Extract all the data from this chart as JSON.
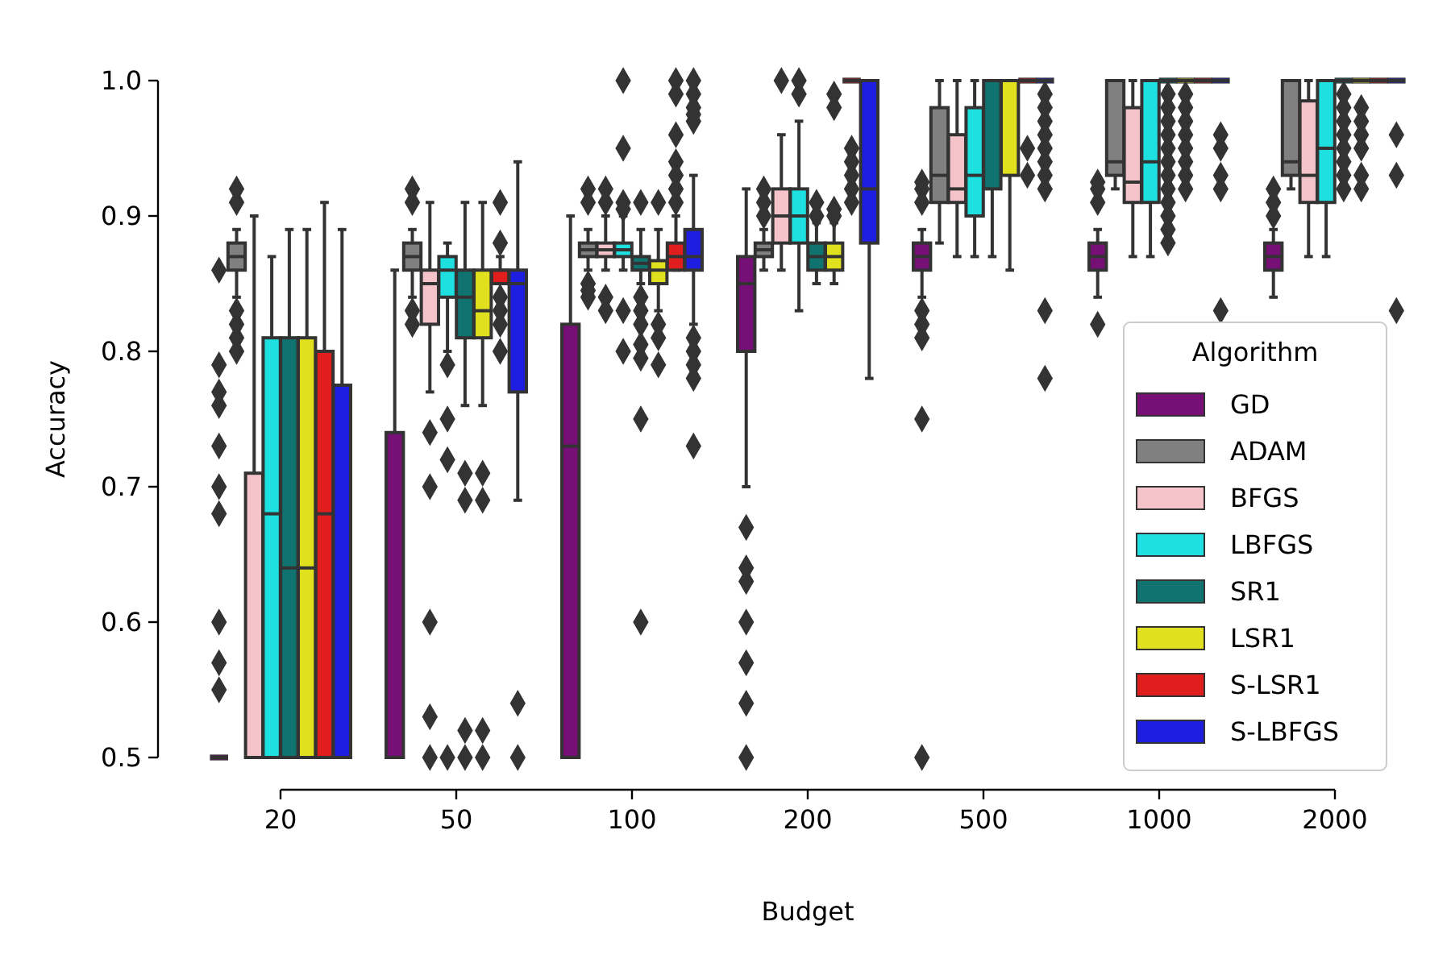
{
  "chart_data": {
    "type": "box",
    "xlabel": "Budget",
    "ylabel": "Accuracy",
    "legend_title": "Algorithm",
    "legend": "right",
    "grid": false,
    "categories": [
      "20",
      "50",
      "100",
      "200",
      "500",
      "1000",
      "2000"
    ],
    "ylim": [
      0.5,
      1.0
    ],
    "yticks": [
      0.5,
      0.6,
      0.7,
      0.8,
      0.9,
      {
        "value": 1.0,
        "label": "1.0"
      }
    ],
    "series": [
      {
        "name": "GD",
        "color": "#760f76",
        "boxes": [
          {
            "low": 0.5,
            "q1": 0.5,
            "median": 0.5,
            "q3": 0.5,
            "high": 0.5,
            "outliers": [
              0.86,
              0.79,
              0.77,
              0.76,
              0.73,
              0.7,
              0.68,
              0.6,
              0.57,
              0.55
            ]
          },
          {
            "low": 0.5,
            "q1": 0.5,
            "median": 0.5,
            "q3": 0.74,
            "high": 0.86
          },
          {
            "low": 0.5,
            "q1": 0.5,
            "median": 0.73,
            "q3": 0.82,
            "high": 0.9
          },
          {
            "low": 0.7,
            "q1": 0.8,
            "median": 0.85,
            "q3": 0.87,
            "high": 0.92,
            "outliers": [
              0.67,
              0.64,
              0.63,
              0.6,
              0.57,
              0.54,
              0.5
            ]
          },
          {
            "low": 0.84,
            "q1": 0.86,
            "median": 0.87,
            "q3": 0.88,
            "high": 0.89,
            "outliers": [
              0.925,
              0.92,
              0.91,
              0.83,
              0.82,
              0.81,
              0.75,
              0.5
            ]
          },
          {
            "low": 0.84,
            "q1": 0.86,
            "median": 0.87,
            "q3": 0.88,
            "high": 0.89,
            "outliers": [
              0.925,
              0.92,
              0.91,
              0.82
            ]
          },
          {
            "low": 0.84,
            "q1": 0.86,
            "median": 0.87,
            "q3": 0.88,
            "high": 0.89,
            "outliers": [
              0.92,
              0.91,
              0.9
            ]
          }
        ]
      },
      {
        "name": "ADAM",
        "color": "#808080",
        "boxes": [
          {
            "low": 0.84,
            "q1": 0.86,
            "median": 0.87,
            "q3": 0.88,
            "high": 0.89,
            "outliers": [
              0.92,
              0.91,
              0.83,
              0.82,
              0.81,
              0.8
            ]
          },
          {
            "low": 0.84,
            "q1": 0.86,
            "median": 0.87,
            "q3": 0.88,
            "high": 0.89,
            "outliers": [
              0.92,
              0.91,
              0.83,
              0.82
            ]
          },
          {
            "low": 0.86,
            "q1": 0.87,
            "median": 0.875,
            "q3": 0.88,
            "high": 0.89,
            "outliers": [
              0.92,
              0.91,
              0.85,
              0.845,
              0.84
            ]
          },
          {
            "low": 0.86,
            "q1": 0.87,
            "median": 0.875,
            "q3": 0.88,
            "high": 0.89,
            "outliers": [
              0.92,
              0.91,
              0.9
            ]
          },
          {
            "low": 0.88,
            "q1": 0.91,
            "median": 0.93,
            "q3": 0.98,
            "high": 1.0
          },
          {
            "low": 0.92,
            "q1": 0.93,
            "median": 0.94,
            "q3": 1.0,
            "high": 1.0
          },
          {
            "low": 0.92,
            "q1": 0.93,
            "median": 0.94,
            "q3": 1.0,
            "high": 1.0
          }
        ]
      },
      {
        "name": "BFGS",
        "color": "#f5c4cb",
        "boxes": [
          {
            "low": 0.5,
            "q1": 0.5,
            "median": 0.5,
            "q3": 0.71,
            "high": 0.9
          },
          {
            "low": 0.77,
            "q1": 0.82,
            "median": 0.85,
            "q3": 0.86,
            "high": 0.91,
            "outliers": [
              0.74,
              0.7,
              0.6,
              0.53,
              0.5
            ]
          },
          {
            "low": 0.86,
            "q1": 0.87,
            "median": 0.875,
            "q3": 0.88,
            "high": 0.9,
            "outliers": [
              0.92,
              0.91,
              0.84,
              0.83
            ]
          },
          {
            "low": 0.86,
            "q1": 0.88,
            "median": 0.9,
            "q3": 0.92,
            "high": 0.96,
            "outliers": [
              1.0
            ]
          },
          {
            "low": 0.87,
            "q1": 0.91,
            "median": 0.92,
            "q3": 0.96,
            "high": 1.0
          },
          {
            "low": 0.87,
            "q1": 0.91,
            "median": 0.925,
            "q3": 0.98,
            "high": 1.0
          },
          {
            "low": 0.87,
            "q1": 0.91,
            "median": 0.93,
            "q3": 0.985,
            "high": 1.0
          }
        ]
      },
      {
        "name": "LBFGS",
        "color": "#1ee0e0",
        "boxes": [
          {
            "low": 0.5,
            "q1": 0.5,
            "median": 0.68,
            "q3": 0.81,
            "high": 0.87
          },
          {
            "low": 0.8,
            "q1": 0.84,
            "median": 0.86,
            "q3": 0.87,
            "high": 0.88,
            "outliers": [
              0.79,
              0.75,
              0.72,
              0.5
            ]
          },
          {
            "low": 0.86,
            "q1": 0.87,
            "median": 0.875,
            "q3": 0.88,
            "high": 0.9,
            "outliers": [
              1.0,
              0.95,
              0.91,
              0.905,
              0.83,
              0.8
            ]
          },
          {
            "low": 0.83,
            "q1": 0.88,
            "median": 0.9,
            "q3": 0.92,
            "high": 0.97,
            "outliers": [
              1.0,
              0.99
            ]
          },
          {
            "low": 0.87,
            "q1": 0.9,
            "median": 0.93,
            "q3": 0.98,
            "high": 1.0
          },
          {
            "low": 0.87,
            "q1": 0.91,
            "median": 0.94,
            "q3": 1.0,
            "high": 1.0
          },
          {
            "low": 0.87,
            "q1": 0.91,
            "median": 0.95,
            "q3": 1.0,
            "high": 1.0
          }
        ]
      },
      {
        "name": "SR1",
        "color": "#107370",
        "boxes": [
          {
            "low": 0.5,
            "q1": 0.5,
            "median": 0.64,
            "q3": 0.81,
            "high": 0.89
          },
          {
            "low": 0.76,
            "q1": 0.81,
            "median": 0.84,
            "q3": 0.86,
            "high": 0.91,
            "outliers": [
              0.71,
              0.69,
              0.52,
              0.5
            ]
          },
          {
            "low": 0.85,
            "q1": 0.86,
            "median": 0.865,
            "q3": 0.87,
            "high": 0.89,
            "outliers": [
              0.91,
              0.84,
              0.83,
              0.82,
              0.805,
              0.795,
              0.75,
              0.6
            ]
          },
          {
            "low": 0.85,
            "q1": 0.86,
            "median": 0.87,
            "q3": 0.88,
            "high": 0.895,
            "outliers": [
              0.91,
              0.9
            ]
          },
          {
            "low": 0.87,
            "q1": 0.92,
            "median": 1.0,
            "q3": 1.0,
            "high": 1.0
          },
          {
            "low": 1.0,
            "q1": 1.0,
            "median": 1.0,
            "q3": 1.0,
            "high": 1.0,
            "outliers": [
              0.99,
              0.98,
              0.97,
              0.96,
              0.95,
              0.94,
              0.93,
              0.92,
              0.91,
              0.9,
              0.89,
              0.88
            ]
          },
          {
            "low": 1.0,
            "q1": 1.0,
            "median": 1.0,
            "q3": 1.0,
            "high": 1.0,
            "outliers": [
              0.99,
              0.98,
              0.97,
              0.96,
              0.95,
              0.94,
              0.93,
              0.92
            ]
          }
        ]
      },
      {
        "name": "LSR1",
        "color": "#e0e01e",
        "boxes": [
          {
            "low": 0.5,
            "q1": 0.5,
            "median": 0.64,
            "q3": 0.81,
            "high": 0.89
          },
          {
            "low": 0.76,
            "q1": 0.81,
            "median": 0.83,
            "q3": 0.86,
            "high": 0.91,
            "outliers": [
              0.71,
              0.69,
              0.52,
              0.5
            ]
          },
          {
            "low": 0.83,
            "q1": 0.85,
            "median": 0.86,
            "q3": 0.867,
            "high": 0.89,
            "outliers": [
              0.91,
              0.82,
              0.81,
              0.79
            ]
          },
          {
            "low": 0.85,
            "q1": 0.86,
            "median": 0.87,
            "q3": 0.88,
            "high": 0.895,
            "outliers": [
              0.99,
              0.98,
              0.905,
              0.9
            ]
          },
          {
            "low": 0.86,
            "q1": 0.93,
            "median": 1.0,
            "q3": 1.0,
            "high": 1.0
          },
          {
            "low": 1.0,
            "q1": 1.0,
            "median": 1.0,
            "q3": 1.0,
            "high": 1.0,
            "outliers": [
              0.99,
              0.98,
              0.97,
              0.96,
              0.95,
              0.94,
              0.93,
              0.92
            ]
          },
          {
            "low": 1.0,
            "q1": 1.0,
            "median": 1.0,
            "q3": 1.0,
            "high": 1.0,
            "outliers": [
              0.98,
              0.97,
              0.96,
              0.95,
              0.93,
              0.92
            ]
          }
        ]
      },
      {
        "name": "S-LSR1",
        "color": "#e01e1e",
        "boxes": [
          {
            "low": 0.5,
            "q1": 0.5,
            "median": 0.68,
            "q3": 0.8,
            "high": 0.91
          },
          {
            "low": 0.85,
            "q1": 0.85,
            "median": 0.86,
            "q3": 0.86,
            "high": 0.87,
            "outliers": [
              0.91,
              0.88,
              0.84,
              0.83,
              0.82,
              0.8
            ]
          },
          {
            "low": 0.86,
            "q1": 0.86,
            "median": 0.87,
            "q3": 0.88,
            "high": 0.9,
            "outliers": [
              1.0,
              0.99,
              0.96,
              0.94,
              0.93,
              0.92,
              0.91
            ]
          },
          {
            "low": 1.0,
            "q1": 1.0,
            "median": 1.0,
            "q3": 1.0,
            "high": 1.0,
            "outliers": [
              0.95,
              0.94,
              0.93,
              0.92,
              0.91
            ]
          },
          {
            "low": 1.0,
            "q1": 1.0,
            "median": 1.0,
            "q3": 1.0,
            "high": 1.0,
            "outliers": [
              0.95,
              0.93
            ]
          },
          {
            "low": 1.0,
            "q1": 1.0,
            "median": 1.0,
            "q3": 1.0,
            "high": 1.0
          },
          {
            "low": 1.0,
            "q1": 1.0,
            "median": 1.0,
            "q3": 1.0,
            "high": 1.0
          }
        ]
      },
      {
        "name": "S-LBFGS",
        "color": "#1e1ee0",
        "boxes": [
          {
            "low": 0.5,
            "q1": 0.5,
            "median": 0.5,
            "q3": 0.775,
            "high": 0.89
          },
          {
            "low": 0.69,
            "q1": 0.77,
            "median": 0.85,
            "q3": 0.86,
            "high": 0.94,
            "outliers": [
              0.54,
              0.5
            ]
          },
          {
            "low": 0.82,
            "q1": 0.86,
            "median": 0.87,
            "q3": 0.89,
            "high": 0.93,
            "outliers": [
              1.0,
              0.99,
              0.98,
              0.975,
              0.97,
              0.81,
              0.8,
              0.79,
              0.78,
              0.73
            ]
          },
          {
            "low": 0.78,
            "q1": 0.88,
            "median": 0.92,
            "q3": 1.0,
            "high": 1.0
          },
          {
            "low": 1.0,
            "q1": 1.0,
            "median": 1.0,
            "q3": 1.0,
            "high": 1.0,
            "outliers": [
              0.99,
              0.98,
              0.97,
              0.96,
              0.95,
              0.94,
              0.93,
              0.92,
              0.83,
              0.78
            ]
          },
          {
            "low": 1.0,
            "q1": 1.0,
            "median": 1.0,
            "q3": 1.0,
            "high": 1.0,
            "outliers": [
              0.96,
              0.95,
              0.93,
              0.92,
              0.83
            ]
          },
          {
            "low": 1.0,
            "q1": 1.0,
            "median": 1.0,
            "q3": 1.0,
            "high": 1.0,
            "outliers": [
              0.96,
              0.93,
              0.83
            ]
          }
        ]
      }
    ]
  }
}
